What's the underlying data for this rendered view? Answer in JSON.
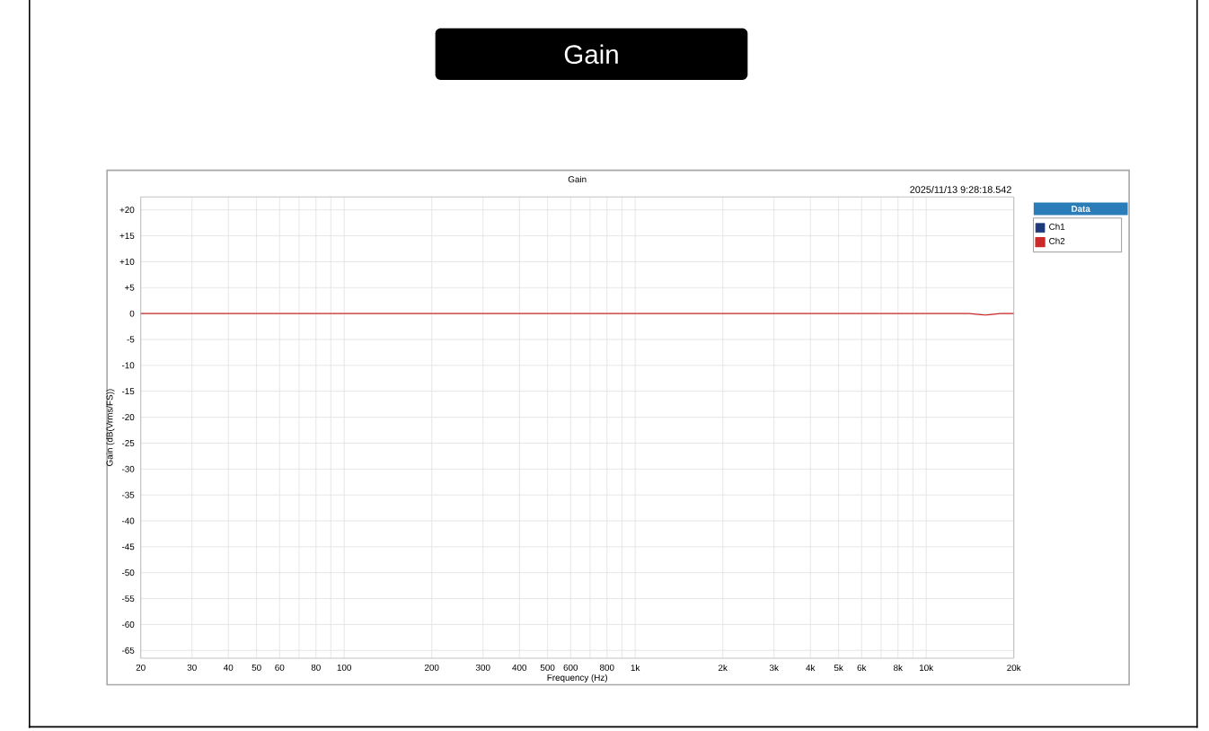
{
  "chart_data": {
    "type": "line",
    "title": "Gain",
    "subtitle": "Gain",
    "annotations": [
      "2025/11/13 9:28:18.542"
    ],
    "xlabel": "Frequency (Hz)",
    "ylabel": "Gain (dB(Vrms/FS))",
    "legend_title": "Data",
    "legend": "top right",
    "grid": true,
    "log": "x",
    "xlim": [
      20,
      20000
    ],
    "ylim": [
      -66.5,
      22.5
    ],
    "xticks": [
      20,
      30,
      40,
      50,
      60,
      {
        "value": 70,
        "label": null
      },
      80,
      {
        "value": 90,
        "label": null
      },
      100,
      200,
      300,
      400,
      500,
      600,
      {
        "value": 700,
        "label": null
      },
      800,
      {
        "value": 900,
        "label": null
      },
      {
        "value": 1000,
        "label": "1k"
      },
      {
        "value": 2000,
        "label": "2k"
      },
      {
        "value": 3000,
        "label": "3k"
      },
      {
        "value": 4000,
        "label": "4k"
      },
      {
        "value": 5000,
        "label": "5k"
      },
      {
        "value": 6000,
        "label": "6k"
      },
      {
        "value": 7000,
        "label": null
      },
      {
        "value": 8000,
        "label": "8k"
      },
      {
        "value": 9000,
        "label": null
      },
      {
        "value": 10000,
        "label": "10k"
      },
      {
        "value": 20000,
        "label": "20k"
      }
    ],
    "yticks": [
      {
        "value": 20,
        "label": "+20"
      },
      {
        "value": 15,
        "label": "+15"
      },
      {
        "value": 10,
        "label": "+10"
      },
      {
        "value": 5,
        "label": "+5"
      },
      0,
      -5,
      -10,
      -15,
      -20,
      -25,
      -30,
      -35,
      -40,
      -45,
      -50,
      -55,
      -60,
      -65
    ],
    "x": [
      20,
      30,
      50,
      100,
      200,
      500,
      1000,
      2000,
      5000,
      10000,
      14000,
      16000,
      18000,
      20000
    ],
    "series": [
      {
        "name": "Ch1",
        "color": "#1f3a7a",
        "values": [
          null,
          null,
          null,
          null,
          null,
          null,
          null,
          null,
          null,
          null,
          null,
          null,
          null,
          null
        ]
      },
      {
        "name": "Ch2",
        "color": "#cc2a2a",
        "values": [
          0,
          0,
          0,
          0,
          0,
          0,
          0,
          0,
          0,
          0,
          0,
          -0.3,
          0,
          0
        ]
      }
    ]
  }
}
